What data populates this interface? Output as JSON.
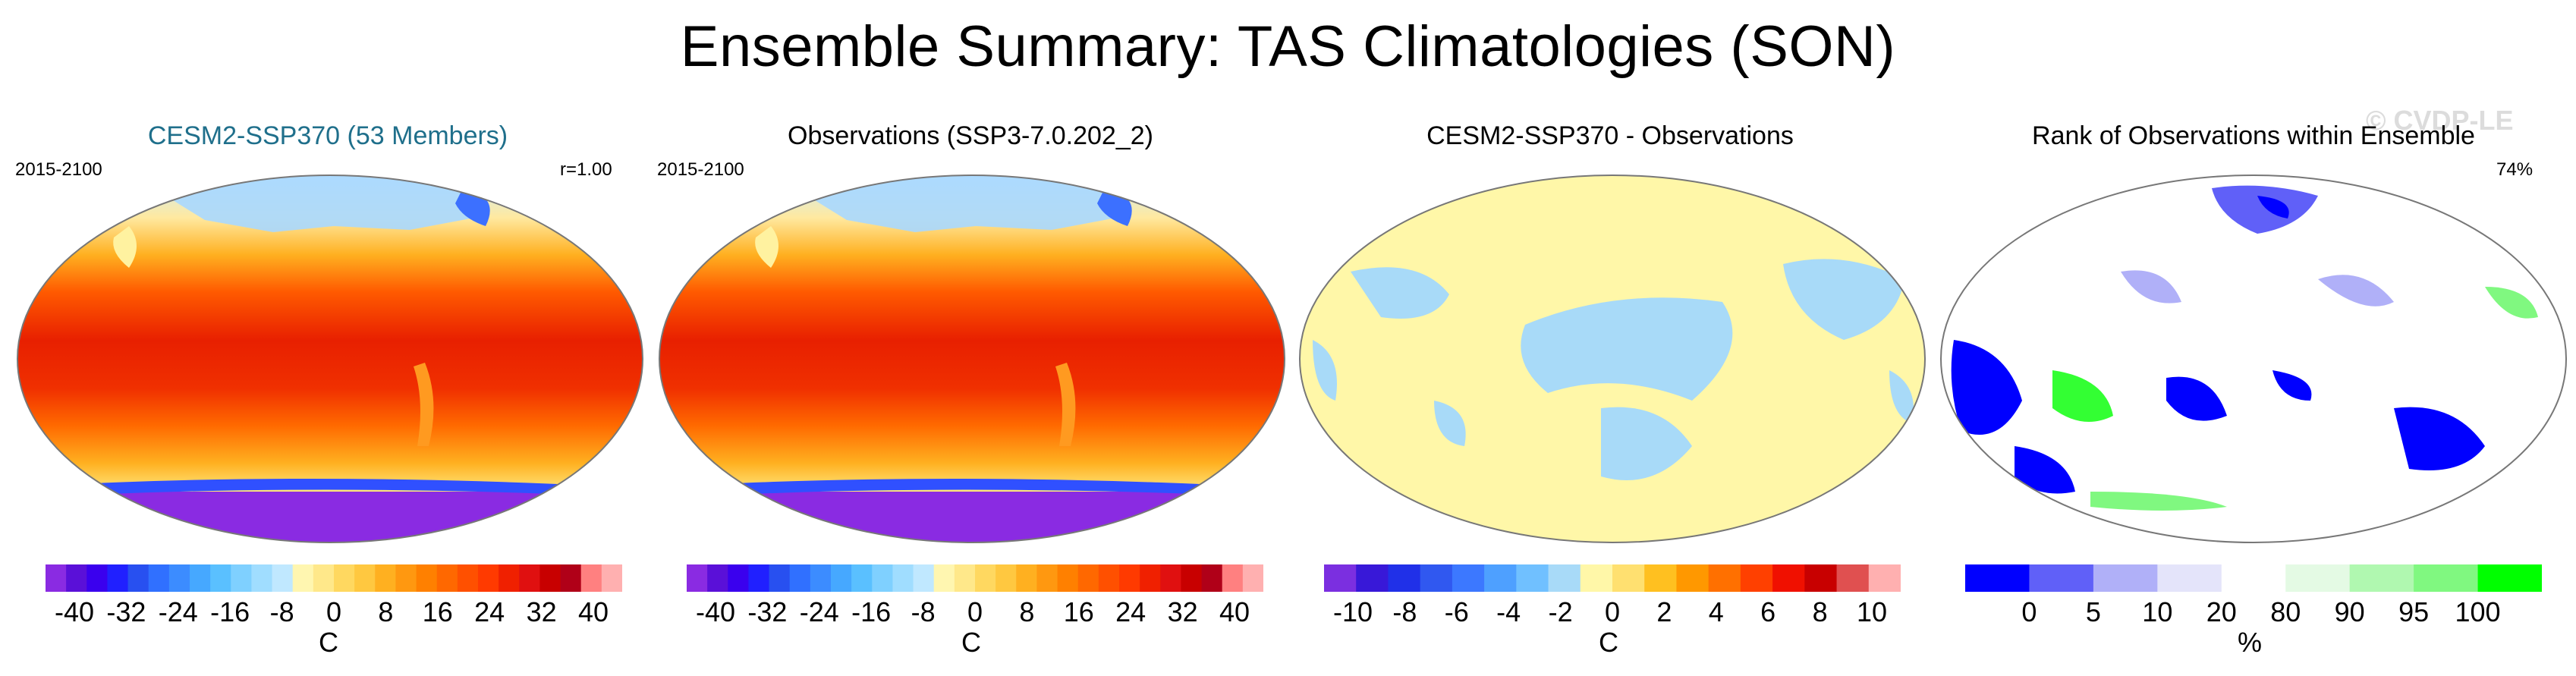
{
  "chart_data": {
    "type": "heatmap",
    "title": "Ensemble Summary: TAS Climatologies (SON)",
    "watermark": "© CVDP-LE",
    "panels": [
      {
        "title": "CESM2-SSP370 (53 Members)",
        "title_color": "#1f6f8b",
        "left_label": "2015-2100",
        "right_label": "r=1.00",
        "colorbar": {
          "ticks": [
            "-40",
            "-32",
            "-24",
            "-16",
            "-8",
            "0",
            "8",
            "16",
            "24",
            "32",
            "40"
          ],
          "unit": "C",
          "colors": [
            "#8a2be2",
            "#5a10d8",
            "#3a00ee",
            "#2020ff",
            "#2850f0",
            "#3070ff",
            "#3c8cff",
            "#46a8ff",
            "#5ac0ff",
            "#7fd0ff",
            "#a0ddff",
            "#c0e8ff",
            "#fff6b0",
            "#ffe88a",
            "#ffd860",
            "#ffc840",
            "#ffb020",
            "#ff9810",
            "#ff8000",
            "#ff6800",
            "#ff5000",
            "#ff3a00",
            "#f02000",
            "#e01010",
            "#c80000",
            "#b00018",
            "#ff8080",
            "#ffb0b0"
          ]
        }
      },
      {
        "title": "Observations (SSP3-7.0.202_2)",
        "title_color": "#000000",
        "left_label": "2015-2100",
        "right_label": "",
        "colorbar": {
          "ticks": [
            "-40",
            "-32",
            "-24",
            "-16",
            "-8",
            "0",
            "8",
            "16",
            "24",
            "32",
            "40"
          ],
          "unit": "C",
          "colors": [
            "#8a2be2",
            "#5a10d8",
            "#3a00ee",
            "#2020ff",
            "#2850f0",
            "#3070ff",
            "#3c8cff",
            "#46a8ff",
            "#5ac0ff",
            "#7fd0ff",
            "#a0ddff",
            "#c0e8ff",
            "#fff6b0",
            "#ffe88a",
            "#ffd860",
            "#ffc840",
            "#ffb020",
            "#ff9810",
            "#ff8000",
            "#ff6800",
            "#ff5000",
            "#ff3a00",
            "#f02000",
            "#e01010",
            "#c80000",
            "#b00018",
            "#ff8080",
            "#ffb0b0"
          ]
        }
      },
      {
        "title": "CESM2-SSP370 - Observations",
        "title_color": "#000000",
        "left_label": "",
        "right_label": "",
        "colorbar": {
          "ticks": [
            "-10",
            "-8",
            "-6",
            "-4",
            "-2",
            "0",
            "2",
            "4",
            "6",
            "8",
            "10"
          ],
          "unit": "C",
          "colors": [
            "#7b2fe0",
            "#3818d8",
            "#2030e8",
            "#3058f0",
            "#3c78ff",
            "#4ea0ff",
            "#70c0ff",
            "#a8daf8",
            "#fff7a8",
            "#ffe070",
            "#ffc020",
            "#ff9800",
            "#ff7000",
            "#ff4000",
            "#f01000",
            "#c80000",
            "#e05050",
            "#ffb0b0"
          ]
        }
      },
      {
        "title": "Rank of Observations within Ensemble",
        "title_color": "#000000",
        "left_label": "",
        "right_label": "74%",
        "colorbar": {
          "ticks": [
            "0",
            "5",
            "10",
            "20",
            "80",
            "90",
            "95",
            "100"
          ],
          "unit": "%",
          "colors": [
            "#0000ff",
            "#6060f8",
            "#b0b0f8",
            "#e4e4fa",
            "#ffffff",
            "#e4fae4",
            "#b0f8b0",
            "#80f880",
            "#00ff00"
          ]
        }
      }
    ]
  },
  "icons": {
    "map_projection": "robinson-globe-icon"
  }
}
